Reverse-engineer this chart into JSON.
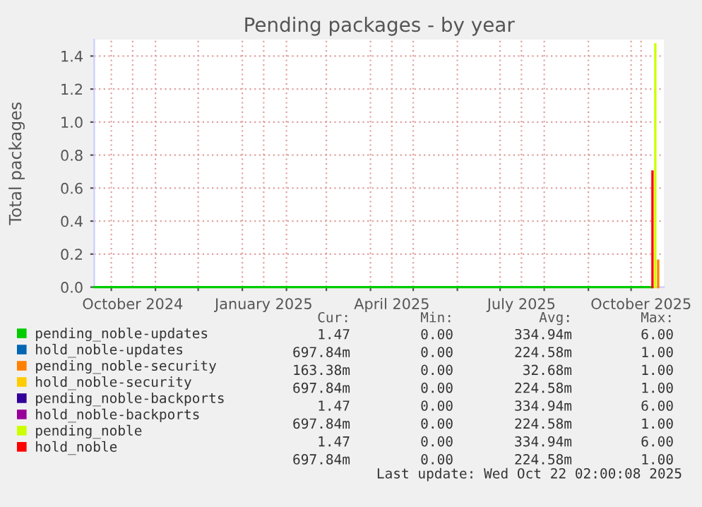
{
  "chart_data": {
    "type": "line",
    "title": "Pending packages - by year",
    "ylabel": "Total packages",
    "x": [
      "2024-09-19",
      "2025-10-15"
    ],
    "series": [
      {
        "name": "pending_noble-updates",
        "color": "#00cc00",
        "values": [
          0,
          0
        ]
      },
      {
        "name": "hold_noble-updates",
        "color": "#0066b3",
        "values": [
          null,
          null
        ]
      },
      {
        "name": "pending_noble-security",
        "color": "#ff8000",
        "x": [
          "2025-10-20",
          "2025-10-20"
        ],
        "values": [
          0,
          0.16
        ]
      },
      {
        "name": "hold_noble-security",
        "color": "#ffcc00",
        "values": [
          null,
          null
        ]
      },
      {
        "name": "pending_noble-backports",
        "color": "#330099",
        "values": [
          null,
          null
        ]
      },
      {
        "name": "hold_noble-backports",
        "color": "#990099",
        "values": [
          null,
          null
        ]
      },
      {
        "name": "pending_noble",
        "color": "#ccff00",
        "x": [
          "2025-10-18",
          "2025-10-18"
        ],
        "values": [
          0,
          1.47
        ]
      },
      {
        "name": "hold_noble",
        "color": "#ff0000",
        "x": [
          "2025-10-16",
          "2025-10-16"
        ],
        "values": [
          0,
          0.7
        ]
      }
    ],
    "xlim": [
      "2024-09-19",
      "2025-10-24"
    ],
    "xticks": [
      {
        "value": "2024-10-01",
        "label": null
      },
      {
        "value": "2024-10-16",
        "label": "October 2024"
      },
      {
        "value": "2024-11-01",
        "label": null
      },
      {
        "value": "2024-12-01",
        "label": null
      },
      {
        "value": "2025-01-01",
        "label": null
      },
      {
        "value": "2025-01-16",
        "label": "January 2025"
      },
      {
        "value": "2025-02-01",
        "label": null
      },
      {
        "value": "2025-03-01",
        "label": null
      },
      {
        "value": "2025-04-01",
        "label": null
      },
      {
        "value": "2025-04-16",
        "label": "April 2025"
      },
      {
        "value": "2025-05-01",
        "label": null
      },
      {
        "value": "2025-06-01",
        "label": null
      },
      {
        "value": "2025-07-01",
        "label": null
      },
      {
        "value": "2025-07-16",
        "label": "July 2025"
      },
      {
        "value": "2025-08-01",
        "label": null
      },
      {
        "value": "2025-09-01",
        "label": null
      },
      {
        "value": "2025-10-01",
        "label": null
      },
      {
        "value": "2025-10-08",
        "label": "October 2025"
      }
    ],
    "ylim": [
      0,
      1.5
    ],
    "yticks": [
      {
        "value": 0,
        "label": "0.0"
      },
      {
        "value": 0.2,
        "label": "0.2"
      },
      {
        "value": 0.4,
        "label": "0.4"
      },
      {
        "value": 0.6,
        "label": "0.6"
      },
      {
        "value": 0.8,
        "label": "0.8"
      },
      {
        "value": 1.0,
        "label": "1.0"
      },
      {
        "value": 1.2,
        "label": "1.2"
      },
      {
        "value": 1.4,
        "label": "1.4"
      }
    ],
    "grid": true,
    "legend": "bottom",
    "line_style": "solid",
    "annotations": [
      "Cur:",
      "Min:",
      "Avg:",
      "Max:",
      "1.47",
      "0.00",
      "334.94m",
      "6.00",
      "697.84m",
      "0.00",
      "224.58m",
      "1.00",
      "163.38m",
      "0.00",
      "32.68m",
      "1.00",
      "697.84m",
      "0.00",
      "224.58m",
      "1.00",
      "1.47",
      "0.00",
      "334.94m",
      "6.00",
      "697.84m",
      "0.00",
      "224.58m",
      "1.00",
      "1.47",
      "0.00",
      "334.94m",
      "6.00",
      "697.84m",
      "0.00",
      "224.58m",
      "1.00",
      "Last update: Wed Oct 22 02:00:08 2025"
    ]
  }
}
